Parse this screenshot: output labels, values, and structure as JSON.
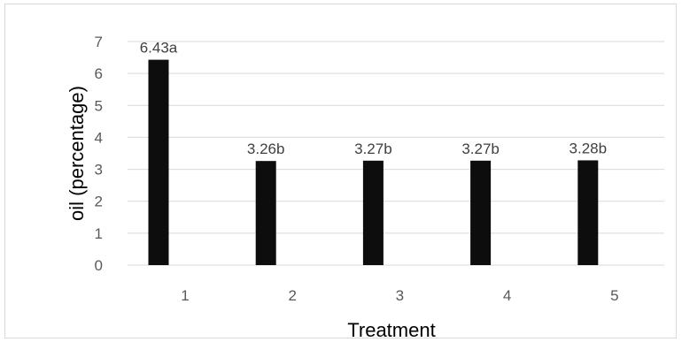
{
  "chart_data": {
    "type": "bar",
    "title": "",
    "xlabel": "Treatment",
    "ylabel": "oil (percentage)",
    "categories": [
      "1",
      "2",
      "3",
      "4",
      "5"
    ],
    "values": [
      6.43,
      3.26,
      3.27,
      3.27,
      3.28
    ],
    "data_labels": [
      "6.43a",
      "3.26b",
      "3.27b",
      "3.27b",
      "3.28b"
    ],
    "y_ticks": [
      "0",
      "1",
      "2",
      "3",
      "4",
      "5",
      "6",
      "7"
    ],
    "ylim": [
      0,
      7
    ],
    "grid": true,
    "legend": "none",
    "colors": {
      "bar": "#0d0d0d",
      "grid": "#d9d9d9",
      "frame": "#d9d9d9"
    }
  }
}
